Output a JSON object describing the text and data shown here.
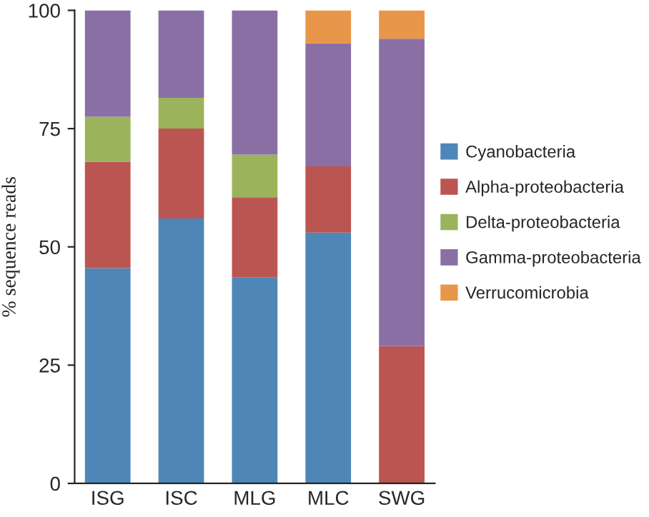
{
  "chart_data": {
    "type": "bar",
    "stacked": true,
    "ylabel": "% sequence reads",
    "categories": [
      "ISG",
      "ISC",
      "MLG",
      "MLC",
      "SWG"
    ],
    "series": [
      {
        "name": "Cyanobacteria",
        "color": "#4f86b8",
        "values": [
          45.5,
          56,
          43.5,
          53,
          null
        ]
      },
      {
        "name": "Alpha-proteobacteria",
        "color": "#bb5552",
        "values": [
          22.5,
          19,
          17,
          14,
          29
        ]
      },
      {
        "name": "Delta-proteobacteria",
        "color": "#9bb45c",
        "values": [
          9.5,
          6.5,
          9,
          null,
          null
        ]
      },
      {
        "name": "Gamma-proteobacteria",
        "color": "#8a6fa5",
        "values": [
          22.5,
          18.5,
          30.5,
          26,
          65
        ]
      },
      {
        "name": "Verrucomicrobia",
        "color": "#e8964a",
        "values": [
          null,
          null,
          null,
          7,
          6
        ]
      }
    ],
    "ylim": [
      0,
      100
    ],
    "yticks": [
      0,
      25,
      50,
      75,
      100
    ],
    "grid": false,
    "legend": "right"
  }
}
